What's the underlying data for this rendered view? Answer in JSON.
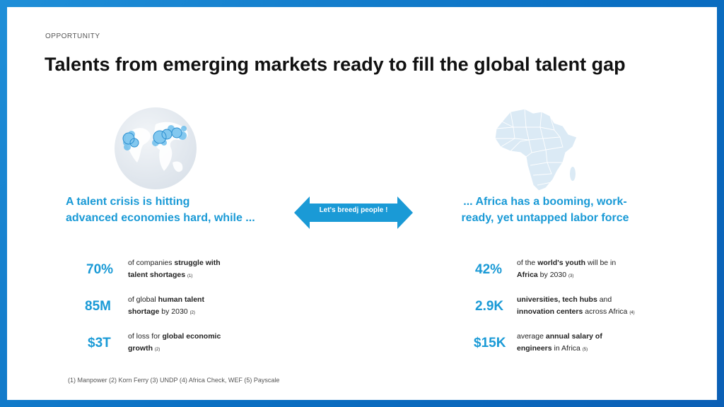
{
  "slide": {
    "kicker": "OPPORTUNITY",
    "title": "Talents from emerging markets ready to fill the global talent gap"
  },
  "left": {
    "headline_line1": "A talent crisis is hitting",
    "headline_line2": "advanced economies hard, while ...",
    "stats": [
      {
        "value": "70%",
        "pre": "of companies ",
        "bold1": "struggle with",
        "bold2": "talent shortages",
        "post": "",
        "ref": "(1)"
      },
      {
        "value": "85M",
        "pre": "of global ",
        "bold1": "human talent",
        "bold2": "shortage",
        "post": " by 2030",
        "ref": "(2)"
      },
      {
        "value": "$3T",
        "pre": "of loss for ",
        "bold1": "global economic",
        "bold2": "growth",
        "post": "",
        "ref": "(2)"
      }
    ]
  },
  "center": {
    "arrow_label": "Let's breedj people !"
  },
  "right": {
    "headline_line1": "... Africa has a booming, work-",
    "headline_line2": "ready, yet untapped labor force",
    "stats": [
      {
        "value": "42%",
        "pre": "of the ",
        "bold1": "world's youth",
        "mid": " will be in",
        "bold2": "Africa",
        "post": " by 2030",
        "ref": "(3)"
      },
      {
        "value": "2.9K",
        "bold1": "universities, tech hubs",
        "mid": " and",
        "bold2": "innovation centers",
        "post": " across Africa",
        "ref": "(4)"
      },
      {
        "value": "$15K",
        "pre": "average ",
        "bold1": "annual salary of",
        "bold2": "engineers",
        "post": " in Africa",
        "ref": "(5)"
      }
    ]
  },
  "footer": {
    "sources": "(1) Manpower (2) Korn Ferry (3) UNDP (4) Africa Check, WEF (5) Payscale"
  },
  "colors": {
    "accent": "#1a9ad6",
    "frame": "#0a6fc2",
    "map_fill": "#dbeaf5"
  },
  "icons": [
    "globe-icon",
    "africa-map-icon",
    "double-arrow-icon"
  ]
}
